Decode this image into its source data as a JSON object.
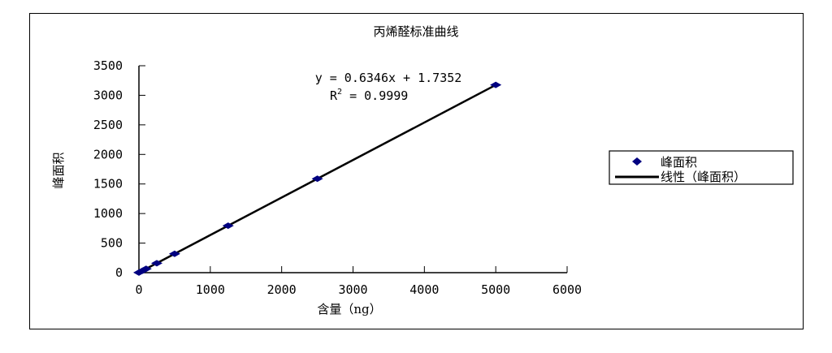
{
  "chart_data": {
    "type": "scatter",
    "title": "丙烯醛标准曲线",
    "xlabel": "含量（ng）",
    "ylabel": "峰面积",
    "xlim": [
      0,
      6000
    ],
    "ylim": [
      0,
      3500
    ],
    "xticks": [
      0,
      1000,
      2000,
      3000,
      4000,
      5000,
      6000
    ],
    "yticks": [
      0,
      500,
      1000,
      1500,
      2000,
      2500,
      3000,
      3500
    ],
    "grid": false,
    "legend_position": "right",
    "series": [
      {
        "name": "峰面积",
        "color": "#000080",
        "marker": "diamond",
        "x": [
          0,
          50,
          100,
          250,
          500,
          1250,
          2500,
          5000
        ],
        "y": [
          2,
          33,
          65,
          160,
          319,
          795,
          1588,
          3175
        ]
      },
      {
        "name": "线性（峰面积）",
        "color": "#000000",
        "type": "trendline",
        "slope": 0.6346,
        "intercept": 1.7352
      }
    ],
    "annotations": {
      "equation": "y = 0.6346x + 1.7352",
      "r2_label": "R",
      "r2_sup": "2",
      "r2_value": " = 0.9999"
    }
  }
}
